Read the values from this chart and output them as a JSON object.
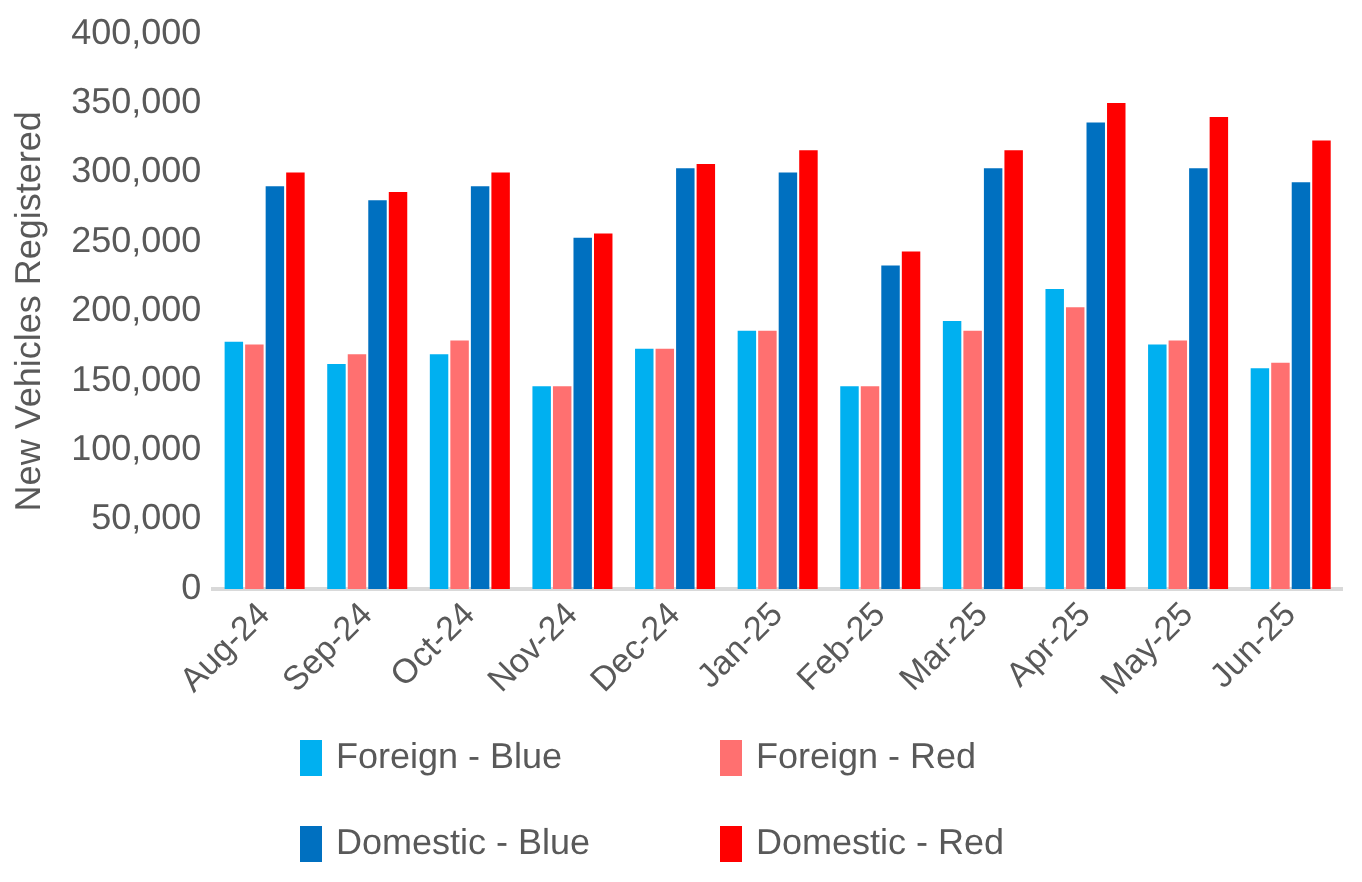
{
  "chart_data": {
    "type": "bar",
    "ylabel": "New Vehicles Registered",
    "categories": [
      "Aug-24",
      "Sep-24",
      "Oct-24",
      "Nov-24",
      "Dec-24",
      "Jan-25",
      "Feb-25",
      "Mar-25",
      "Apr-25",
      "May-25",
      "Jun-25"
    ],
    "series": [
      {
        "name": "Foreign - Blue",
        "color": "#00b0f0",
        "values": [
          178000,
          162000,
          169000,
          146000,
          173000,
          186000,
          146000,
          193000,
          216000,
          176000,
          159000
        ]
      },
      {
        "name": "Foreign - Red",
        "color": "#ff7070",
        "values": [
          176000,
          169000,
          179000,
          146000,
          173000,
          186000,
          146000,
          186000,
          203000,
          179000,
          163000
        ]
      },
      {
        "name": "Domestic - Blue",
        "color": "#0070c0",
        "values": [
          290000,
          280000,
          290000,
          253000,
          303000,
          300000,
          233000,
          303000,
          336000,
          303000,
          293000
        ]
      },
      {
        "name": "Domestic - Red",
        "color": "#ff0000",
        "values": [
          300000,
          286000,
          300000,
          256000,
          306000,
          316000,
          243000,
          316000,
          350000,
          340000,
          323000
        ]
      }
    ],
    "ylim": [
      0,
      400000
    ],
    "yticks": [
      0,
      {
        "value": 50000,
        "label": "50,000"
      },
      {
        "value": 100000,
        "label": "100,000"
      },
      {
        "value": 150000,
        "label": "150,000"
      },
      {
        "value": 200000,
        "label": "200,000"
      },
      {
        "value": 250000,
        "label": "250,000"
      },
      {
        "value": 300000,
        "label": "300,000"
      },
      {
        "value": 350000,
        "label": "350,000"
      },
      {
        "value": 400000,
        "label": "400,000"
      }
    ],
    "grid": false,
    "legend": "bottom"
  }
}
